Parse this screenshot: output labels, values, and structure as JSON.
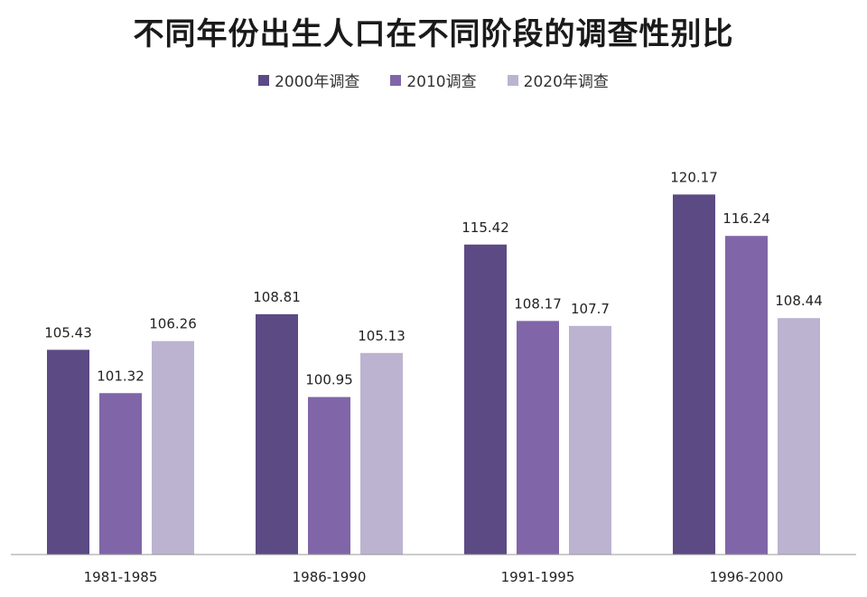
{
  "chart_data": {
    "type": "bar",
    "title": "不同年份出生人口在不同阶段的调查性别比",
    "categories": [
      "1981-1985",
      "1986-1990",
      "1991-1995",
      "1996-2000"
    ],
    "series": [
      {
        "name": "2000年调查",
        "color": "#5b4a84",
        "values": [
          105.43,
          108.81,
          115.42,
          120.17
        ]
      },
      {
        "name": "2010调查",
        "color": "#8066a8",
        "values": [
          101.32,
          100.95,
          108.17,
          116.24
        ]
      },
      {
        "name": "2020年调查",
        "color": "#bcb3d0",
        "values": [
          106.26,
          105.13,
          107.7,
          108.44
        ]
      }
    ],
    "legend_position": "top",
    "grid": false,
    "ylim": [
      86,
      122
    ]
  }
}
